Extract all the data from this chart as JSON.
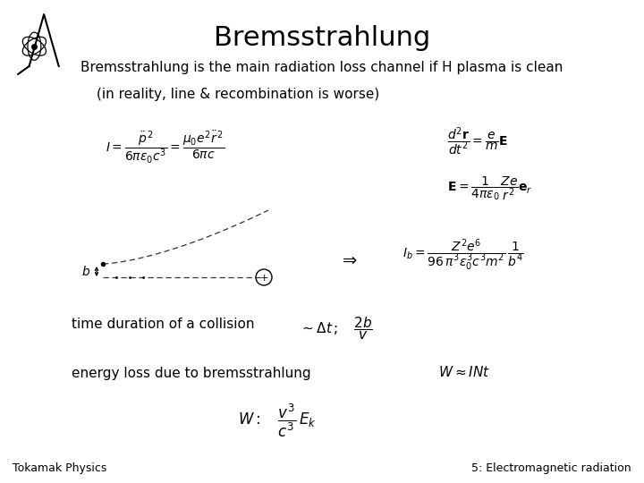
{
  "title": "Bremsstrahlung",
  "subtitle1": "Bremsstrahlung is the main radiation loss channel if H plasma is clean",
  "subtitle2": "(in reality, line & recombination is worse)",
  "footer_left": "Tokamak Physics",
  "footer_right": "5: Electromagnetic radiation",
  "bg_color": "#ffffff",
  "text_color": "#000000",
  "title_fontsize": 22,
  "subtitle_fontsize": 11,
  "body_fontsize": 10,
  "footer_fontsize": 9,
  "formula_I": "$I = \\dfrac{\\ddot{p}^{\\,2}}{6\\pi\\varepsilon_0 c^3} = \\dfrac{\\mu_0 e^2 \\ddot{r}^{\\,2}}{6\\pi c}$",
  "formula_eom1": "$\\dfrac{d^2\\mathbf{r}}{dt^2} = \\dfrac{e}{m}\\mathbf{E}$",
  "formula_eom2": "$\\mathbf{E} = \\dfrac{1}{4\\pi\\varepsilon_0}\\dfrac{Ze}{r^2}\\mathbf{e}_r$",
  "formula_Ib": "$I_b = \\dfrac{Z^2 e^6}{96\\,\\pi^3 \\varepsilon_0^3 c^3 m^2}\\,\\dfrac{1}{b^4}$",
  "label_time": "time duration of a collision",
  "formula_time": "$\\sim \\Delta t\\,;\\quad \\dfrac{2b}{v}$",
  "label_energy": "energy loss due to bremsstrahlung",
  "formula_energy": "$W \\approx I\\mathit{N}t$",
  "formula_W": "$W :\\quad \\dfrac{v^3}{c^3}\\, E_k$"
}
